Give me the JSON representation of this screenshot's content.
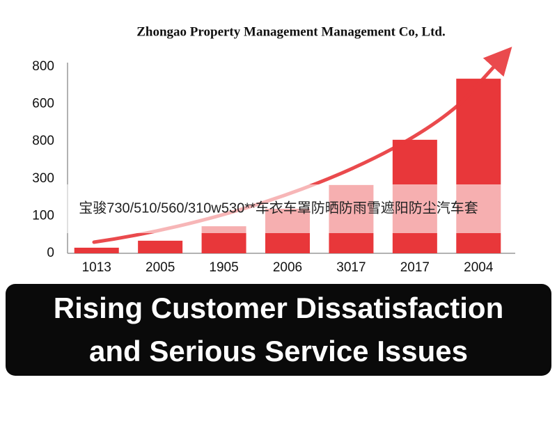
{
  "chart_data": {
    "type": "bar",
    "title": "Zhongao Property Management Management Co, Ltd.",
    "categories": [
      "1013",
      "2005",
      "1905",
      "2006",
      "3017",
      "2017",
      "2004"
    ],
    "values": [
      24,
      54,
      116,
      191,
      293,
      487,
      749
    ],
    "color": "#e8373a",
    "ylim": [
      0,
      800
    ],
    "y_axis_labels": [
      "0",
      "100",
      "300",
      "800",
      "600",
      "800"
    ],
    "overlay_caption": "宝骏730/510/560/310w530**车衣车罩防晒防雨雪遮阳防尘汽车套",
    "banner": [
      "Rising Customer Dissatisfaction",
      "and Serious Service Issues"
    ]
  }
}
